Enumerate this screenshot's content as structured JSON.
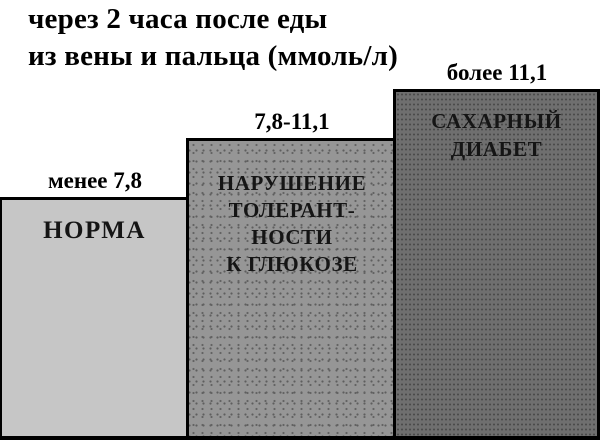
{
  "title": {
    "line1": "через 2 часа после еды",
    "line2": "из вены и пальца (ммоль/л)"
  },
  "colors": {
    "background": "#ffffff",
    "border": "#000000",
    "text": "#111111",
    "bar_norma_fill": "#c6c6c6",
    "bar_tolerance_fill": "#969696",
    "bar_diabetes_fill": "#6f6f6f"
  },
  "bars": [
    {
      "value_label": "менее 7,8",
      "category": "НОРМА",
      "lines": [
        "НОРМА"
      ]
    },
    {
      "value_label": "7,8-11,1",
      "category": "НАРУШЕНИЕ ТОЛЕРАНТНОСТИ К ГЛЮКОЗЕ",
      "lines": [
        "НАРУШЕНИЕ",
        "ТОЛЕРАНТ-",
        "НОСТИ",
        "К ГЛЮКОЗЕ"
      ]
    },
    {
      "value_label": "более 11,1",
      "category": "САХАРНЫЙ ДИАБЕТ",
      "lines": [
        "САХАРНЫЙ",
        "ДИАБЕТ"
      ]
    }
  ],
  "chart_data": {
    "type": "bar",
    "title": "через 2 часа после еды из вены и пальца (ммоль/л)",
    "unit": "ммоль/л",
    "categories": [
      "НОРМА",
      "НАРУШЕНИЕ ТОЛЕРАНТНОСТИ К ГЛЮКОЗЕ",
      "САХАРНЫЙ ДИАБЕТ"
    ],
    "value_labels": [
      "менее 7,8",
      "7,8-11,1",
      "более 11,1"
    ],
    "thresholds": [
      7.8,
      11.1
    ],
    "relative_heights": [
      0.55,
      0.69,
      0.8
    ],
    "legend": "none",
    "grid": false
  }
}
